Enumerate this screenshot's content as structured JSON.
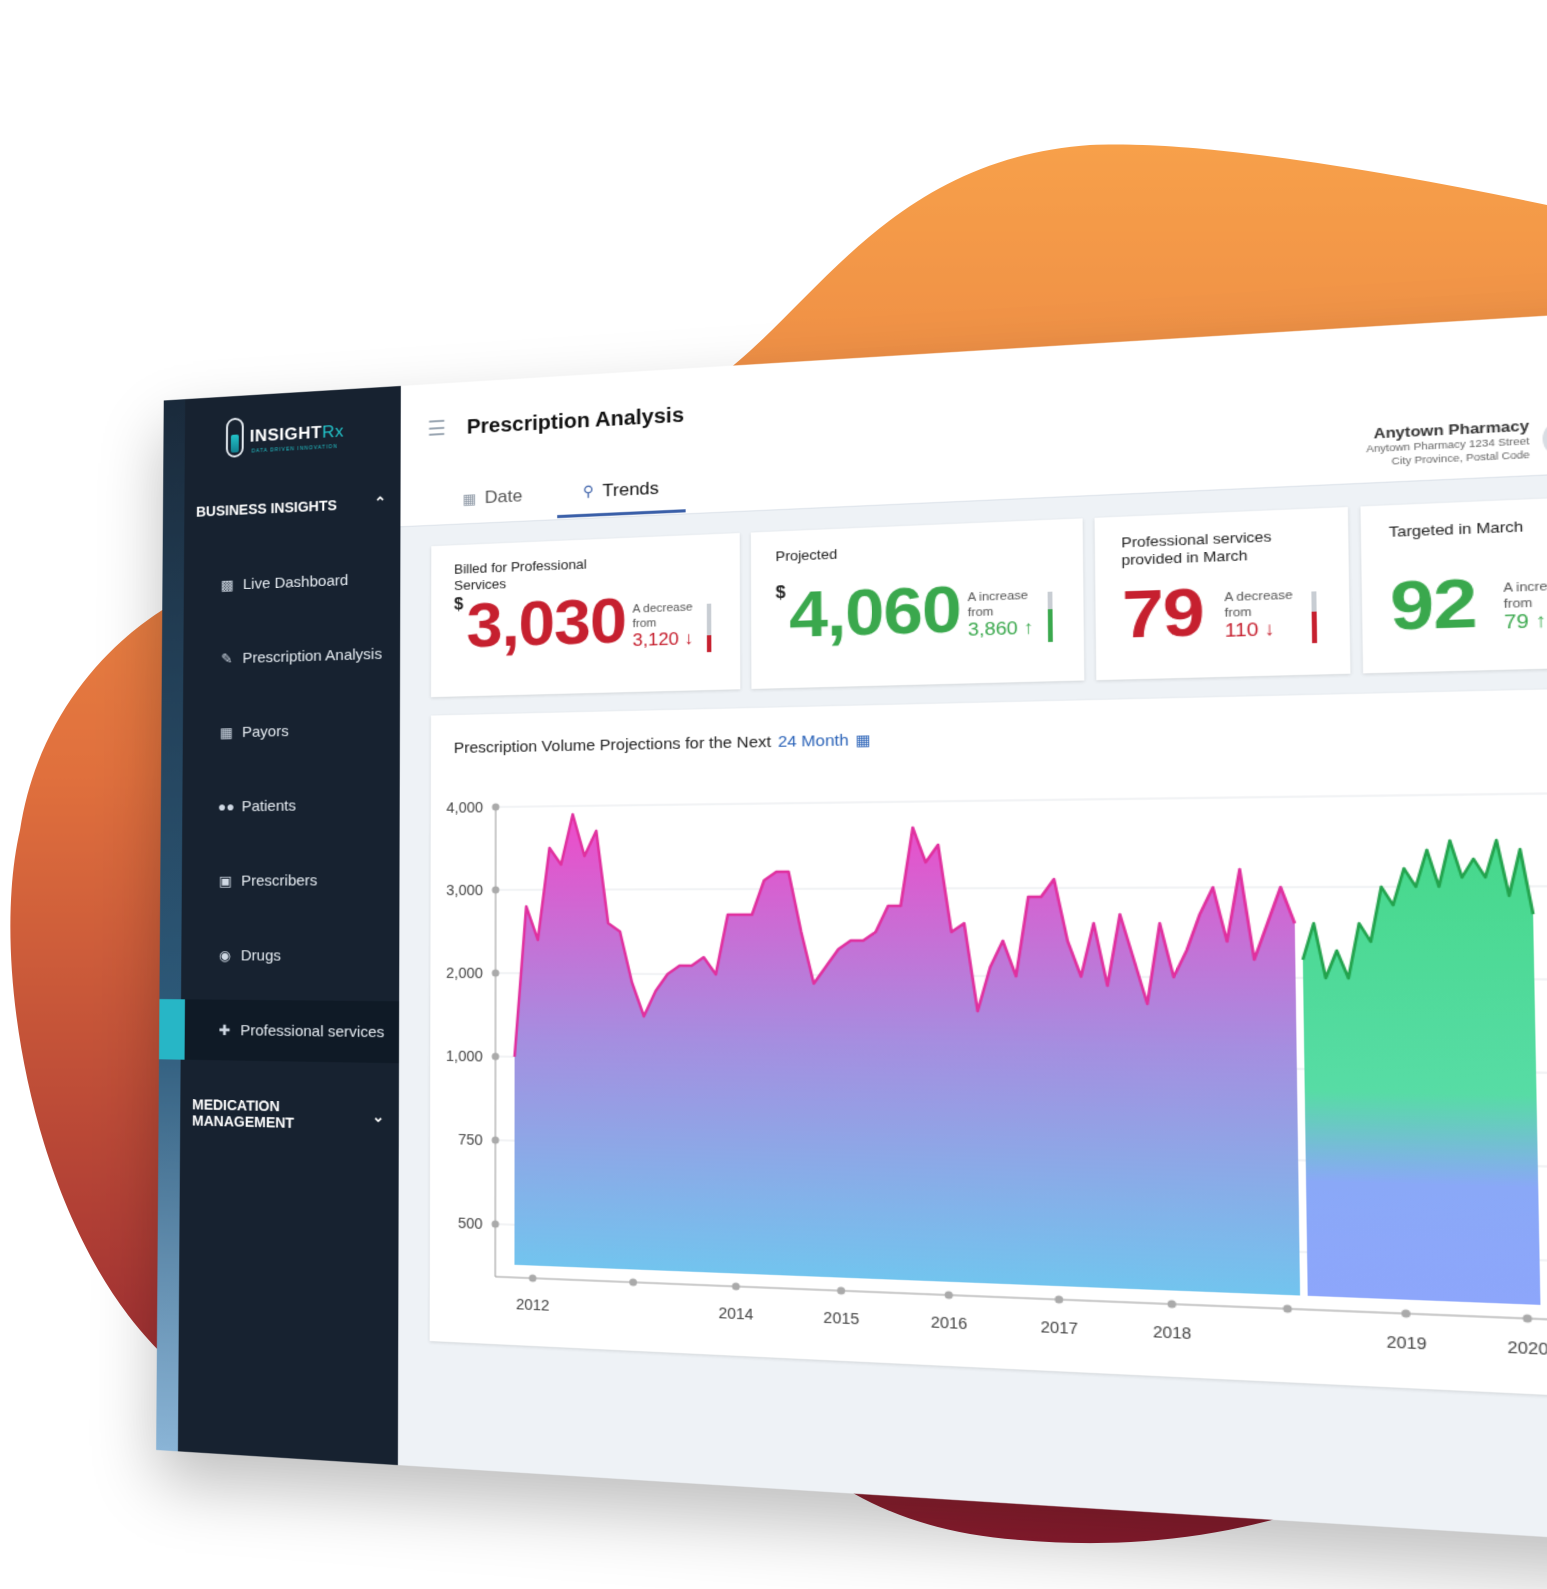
{
  "colors": {
    "blob_top": "#f7a04a",
    "blob_bottom": "#8e1b2f",
    "sidebar_bg": "#172230",
    "accent": "#27b6c6",
    "negative": "#c6202f",
    "positive": "#3aa84d",
    "tab_active": "#3a5fa8"
  },
  "logo": {
    "word": "INSIGHT",
    "suffix": "Rx",
    "tagline": "DATA DRIVEN INNOVATION"
  },
  "sidebar": {
    "section_business": "BUSINESS INSIGHTS",
    "section_medication": "MEDICATION MANAGEMENT",
    "items": [
      {
        "label": "Live Dashboard",
        "icon": "bar-chart-icon"
      },
      {
        "label": "Prescription Analysis",
        "icon": "edit-document-icon"
      },
      {
        "label": "Payors",
        "icon": "hand-money-icon"
      },
      {
        "label": "Patients",
        "icon": "users-icon"
      },
      {
        "label": "Prescribers",
        "icon": "doctor-badge-icon"
      },
      {
        "label": "Drugs",
        "icon": "pills-icon"
      },
      {
        "label": "Professional services",
        "icon": "medical-bag-icon"
      }
    ],
    "active": "Professional services"
  },
  "header": {
    "title": "Prescription Analysis",
    "tabs": [
      {
        "label": "Date",
        "icon": "calendar-icon"
      },
      {
        "label": "Trends",
        "icon": "search-trend-icon"
      }
    ],
    "active_tab": "Trends"
  },
  "user": {
    "name": "Anytown Pharmacy",
    "address_line1": "Anytown Pharmacy 1234 Street",
    "address_line2": "City Province, Postal Code"
  },
  "kpis": [
    {
      "label": "Billed for Professional Services",
      "currency": "$",
      "value": "3,030",
      "trend_text": "A decrease from",
      "compare": "3,120",
      "arrow": "↓",
      "level": 0.35
    },
    {
      "label": "Projected",
      "currency": "$",
      "value": "4,060",
      "trend_text": "A increase from",
      "compare": "3,860",
      "arrow": "↑",
      "level": 0.65
    },
    {
      "label": "Professional services provided in March",
      "currency": "",
      "value": "79",
      "trend_text": "A decrease from",
      "compare": "110",
      "arrow": "↓",
      "level": 0.6
    },
    {
      "label": "Targeted in March",
      "currency": "",
      "value": "92",
      "trend_text": "A increase from",
      "compare": "79",
      "arrow": "↑",
      "level": 0.55
    }
  ],
  "chart_data": {
    "type": "area",
    "title_prefix": "Prescription Volume Projections for the Next",
    "title_link": "24 Month",
    "y_ticks": [
      "4,000",
      "3,000",
      "2,000",
      "1,000",
      "750",
      "500"
    ],
    "x_ticks": [
      "2012",
      "",
      "2014",
      "2015",
      "2016",
      "2017",
      "2018",
      "",
      "2019",
      "2020"
    ],
    "series": [
      {
        "kind": "historical",
        "values": [
          1000,
          2800,
          2400,
          3500,
          3300,
          3900,
          3400,
          3700,
          2600,
          2500,
          1900,
          1500,
          1800,
          2000,
          2100,
          2100,
          2200,
          2000,
          2700,
          2700,
          2700,
          3100,
          3200,
          3200,
          2500,
          1900,
          2100,
          2300,
          2400,
          2400,
          2500,
          2800,
          2800,
          3700,
          3300,
          3500,
          2500,
          2600,
          1600,
          2100,
          2400,
          2000,
          2900,
          2900,
          3100,
          2400,
          2000,
          2600,
          1900,
          2700,
          2200,
          1700,
          2600,
          2000,
          2300,
          2700,
          3000,
          2400,
          3200,
          2200,
          2600,
          3000,
          2600
        ]
      },
      {
        "kind": "projected",
        "values": [
          2200,
          2600,
          2000,
          2300,
          2000,
          2600,
          2400,
          3000,
          2800,
          3200,
          3000,
          3400,
          3000,
          3500,
          3100,
          3300,
          3100,
          3500,
          2900,
          3400,
          2700
        ]
      }
    ]
  }
}
